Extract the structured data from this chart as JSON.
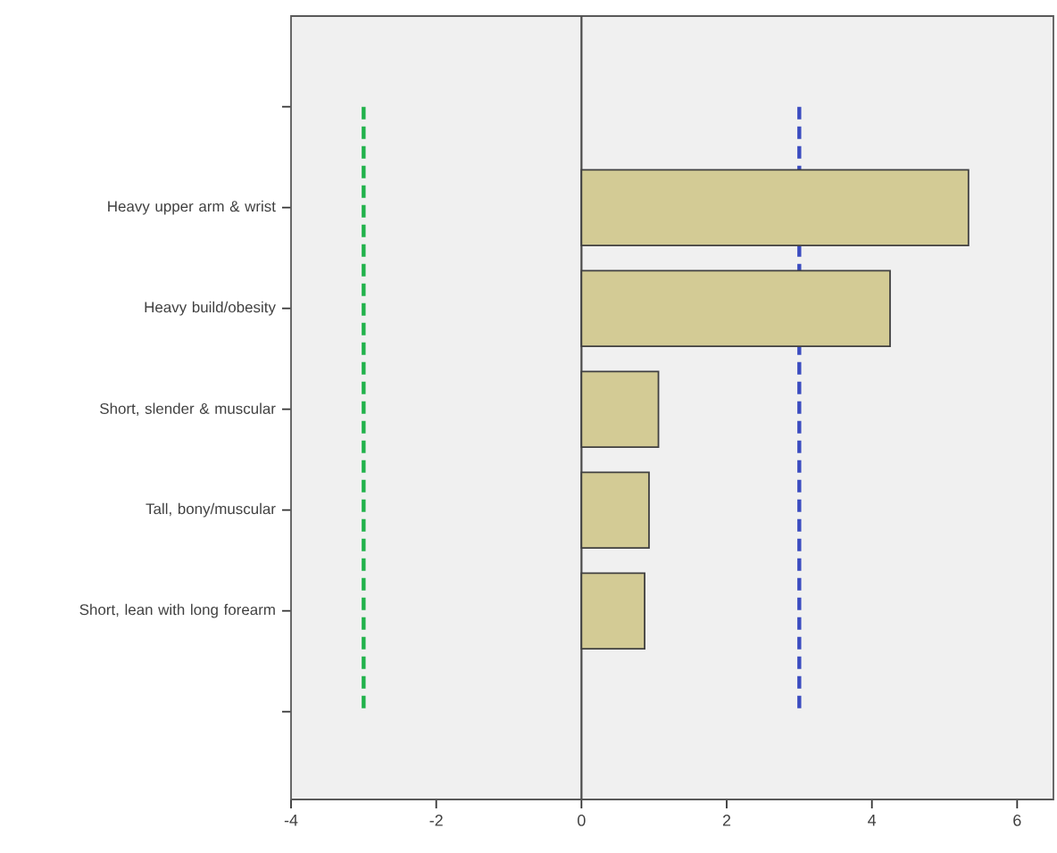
{
  "chart_data": {
    "type": "bar",
    "orientation": "horizontal",
    "categories": [
      null,
      "Heavy upper arm & wrist",
      "Heavy build/obesity",
      "Short, slender & muscular",
      "Tall, bony/muscular",
      "Short, lean with long forearm",
      null
    ],
    "values": [
      null,
      5.33,
      4.25,
      1.06,
      0.93,
      0.87,
      null
    ],
    "color": "#d3cb95",
    "xlim": [
      -4,
      6.5
    ],
    "xticks": [
      -4,
      -2,
      0,
      2,
      4,
      6
    ],
    "ref_lines": [
      {
        "axis": "x",
        "value": -3,
        "color": "#21b24b",
        "line_style": "dashed"
      },
      {
        "axis": "x",
        "value": 3,
        "color": "#3b4cc0",
        "line_style": "dashed"
      }
    ]
  }
}
